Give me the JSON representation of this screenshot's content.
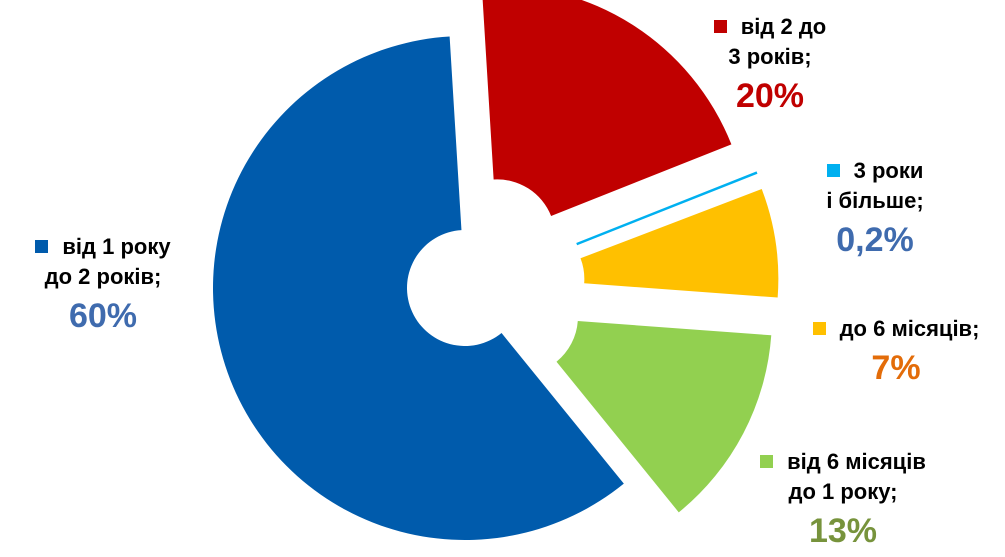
{
  "chart_data": {
    "type": "pie",
    "donut": true,
    "exploded": true,
    "slices": [
      {
        "label_line1": "від 2 до",
        "label_line2": "3 років;",
        "value": 20,
        "value_label": "20%",
        "color": "#C00000",
        "value_color": "#C00000"
      },
      {
        "label_line1": "3 роки",
        "label_line2": "і більше;",
        "value": 0.2,
        "value_label": "0,2%",
        "color": "#00B0F0",
        "value_color": "#3F6BAE"
      },
      {
        "label_line1": "до 6 місяців;",
        "label_line2": "",
        "value": 7,
        "value_label": "7%",
        "color": "#FFC000",
        "value_color": "#E36C09"
      },
      {
        "label_line1": "від 6 місяців",
        "label_line2": "до 1 року;",
        "value": 13,
        "value_label": "13%",
        "color": "#92D050",
        "value_color": "#77933C"
      },
      {
        "label_line1": "від 1 року",
        "label_line2": "до 2 років;",
        "value": 60,
        "value_label": "60%",
        "color": "#005BAC",
        "value_color": "#3F6BAE"
      }
    ]
  }
}
